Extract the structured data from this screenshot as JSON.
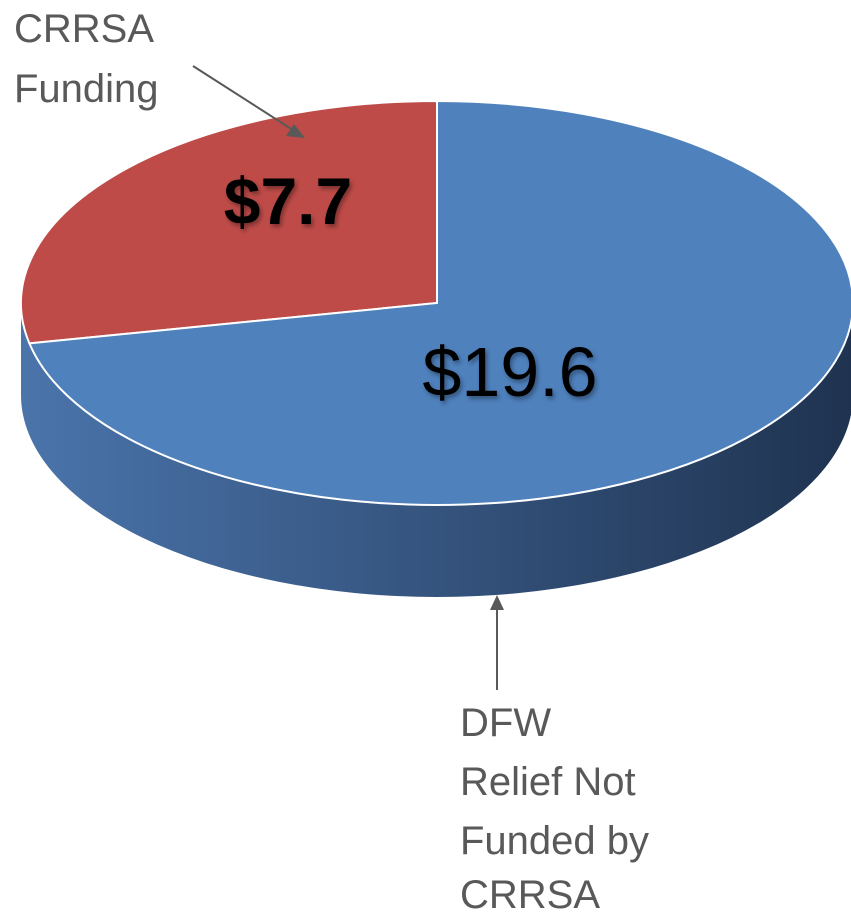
{
  "chart_data": {
    "type": "pie",
    "style": "3d",
    "slices": [
      {
        "label": "CRRSA Funding",
        "value": 7.7,
        "value_label": "$7.7",
        "color": "#be4b48"
      },
      {
        "label": "DFW Relief Not Funded by CRRSA",
        "value": 19.6,
        "value_label": "$19.6",
        "color": "#4f81bd"
      }
    ],
    "callouts": {
      "crrsa": [
        "CRRSA",
        "Funding"
      ],
      "dfw": [
        "DFW",
        "Relief Not",
        "Funded by",
        "CRRSA"
      ]
    },
    "colors": {
      "side_light": "#4a74ab",
      "side_dark": "#1f3350",
      "callout_text": "#595959",
      "arrow": "#595959"
    }
  }
}
